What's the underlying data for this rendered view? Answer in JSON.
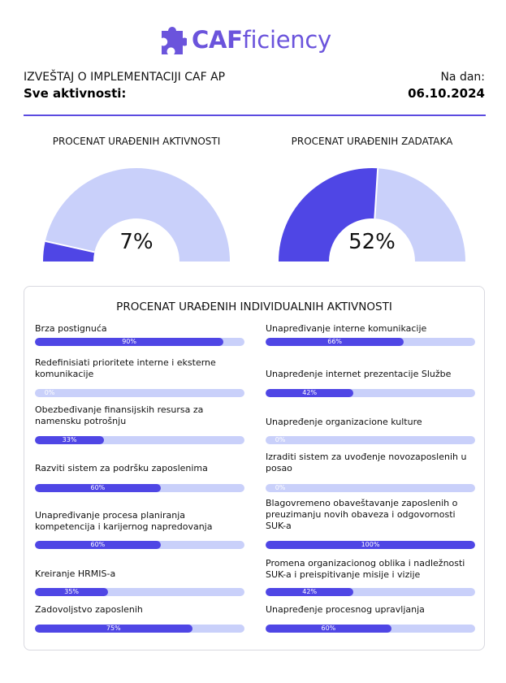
{
  "logo": {
    "icon": "puzzle-icon",
    "bold": "CAF",
    "rest": "ficiency",
    "color": "#6b54dc"
  },
  "header": {
    "title": "IZVEŠTAJ O IMPLEMENTACIJI CAF AP",
    "subtitle": "Sve aktivnosti:",
    "date_label": "Na dan:",
    "date": "06.10.2024"
  },
  "colors": {
    "accent": "#4f46e5",
    "track": "#c9d0fa"
  },
  "gauges": [
    {
      "title": "PROCENAT URAĐENIH AKTIVNOSTI",
      "value": 7,
      "label": "7%"
    },
    {
      "title": "PROCENAT URAĐENIH ZADATAKA",
      "value": 52,
      "label": "52%"
    }
  ],
  "panel": {
    "title": "PROCENAT URAĐENIH INDIVIDUALNIH AKTIVNOSTI"
  },
  "activities": {
    "left": [
      {
        "label": "Brza postignuća",
        "value": 90,
        "text": "90%"
      },
      {
        "label": "Redefinisiati prioritete interne i eksterne komunikacije",
        "value": 0,
        "text": "0%"
      },
      {
        "label": "Obezbeđivanje finansijskih resursa za namensku potrošnju",
        "value": 33,
        "text": "33%"
      },
      {
        "label": "Razviti sistem za podršku zaposlenima",
        "value": 60,
        "text": "60%"
      },
      {
        "label": "Unapređivanje procesa planiranja kompetencija i karijernog napredovanja",
        "value": 60,
        "text": "60%"
      },
      {
        "label": "Kreiranje HRMIS-a",
        "value": 35,
        "text": "35%"
      },
      {
        "label": "Zadovoljstvo zaposlenih",
        "value": 75,
        "text": "75%"
      }
    ],
    "right": [
      {
        "label": "Unapređivanje interne komunikacije",
        "value": 66,
        "text": "66%"
      },
      {
        "label": "Unapređenje internet prezentacije Službe",
        "value": 42,
        "text": "42%"
      },
      {
        "label": "Unapređenje organizacione kulture",
        "value": 0,
        "text": "0%"
      },
      {
        "label": "Izraditi sistem za uvođenje novozaposlenih u posao",
        "value": 0,
        "text": "0%"
      },
      {
        "label": "Blagovremeno obaveštavanje zaposlenih o preuzimanju novih obaveza i odgovornosti SUK-a",
        "value": 100,
        "text": "100%"
      },
      {
        "label": "Promena organizacionog oblika i nadležnosti SUK-a i preispitivanje misije i vizije",
        "value": 42,
        "text": "42%"
      },
      {
        "label": "Unapređenje procesnog upravljanja",
        "value": 60,
        "text": "60%"
      }
    ]
  }
}
